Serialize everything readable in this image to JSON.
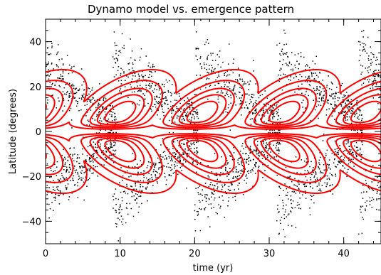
{
  "chart_data": {
    "type": "scatter",
    "title": "Dynamo model vs. emergence pattern",
    "xlabel": "time (yr)",
    "ylabel": "Latitude (degrees)",
    "xlim": [
      0,
      45
    ],
    "ylim": [
      -50,
      50
    ],
    "xticks": [
      0,
      10,
      20,
      30,
      40
    ],
    "yticks": [
      -40,
      -20,
      0,
      20,
      40
    ],
    "xtick_labels": [
      "0",
      "10",
      "20",
      "30",
      "40"
    ],
    "ytick_labels": [
      "−40",
      "−20",
      "0",
      "20",
      "40"
    ],
    "grid": false,
    "legend": "none",
    "cycle_period": 11,
    "series": [
      {
        "kind": "scatter",
        "color": "#000000",
        "description_of_points": "sunspot emergence latitudes, butterfly wings per cycle",
        "cycles": [
          {
            "start": -2.0,
            "end": 9.5,
            "lat_start": 35,
            "lat_end": 5
          },
          {
            "start": 9.0,
            "end": 20.5,
            "lat_start": 35,
            "lat_end": 5
          },
          {
            "start": 20.0,
            "end": 31.5,
            "lat_start": 35,
            "lat_end": 5
          },
          {
            "start": 31.0,
            "end": 42.5,
            "lat_start": 35,
            "lat_end": 5
          },
          {
            "start": 42.0,
            "end": 53.5,
            "lat_start": 35,
            "lat_end": 5
          }
        ]
      },
      {
        "kind": "contour",
        "color": "#ff0000",
        "contour_levels": [
          0.12,
          0.3,
          0.5,
          0.68,
          0.85
        ],
        "centers_x": [
          -2,
          10,
          21,
          32,
          43
        ],
        "center_lat": 8
      }
    ]
  }
}
